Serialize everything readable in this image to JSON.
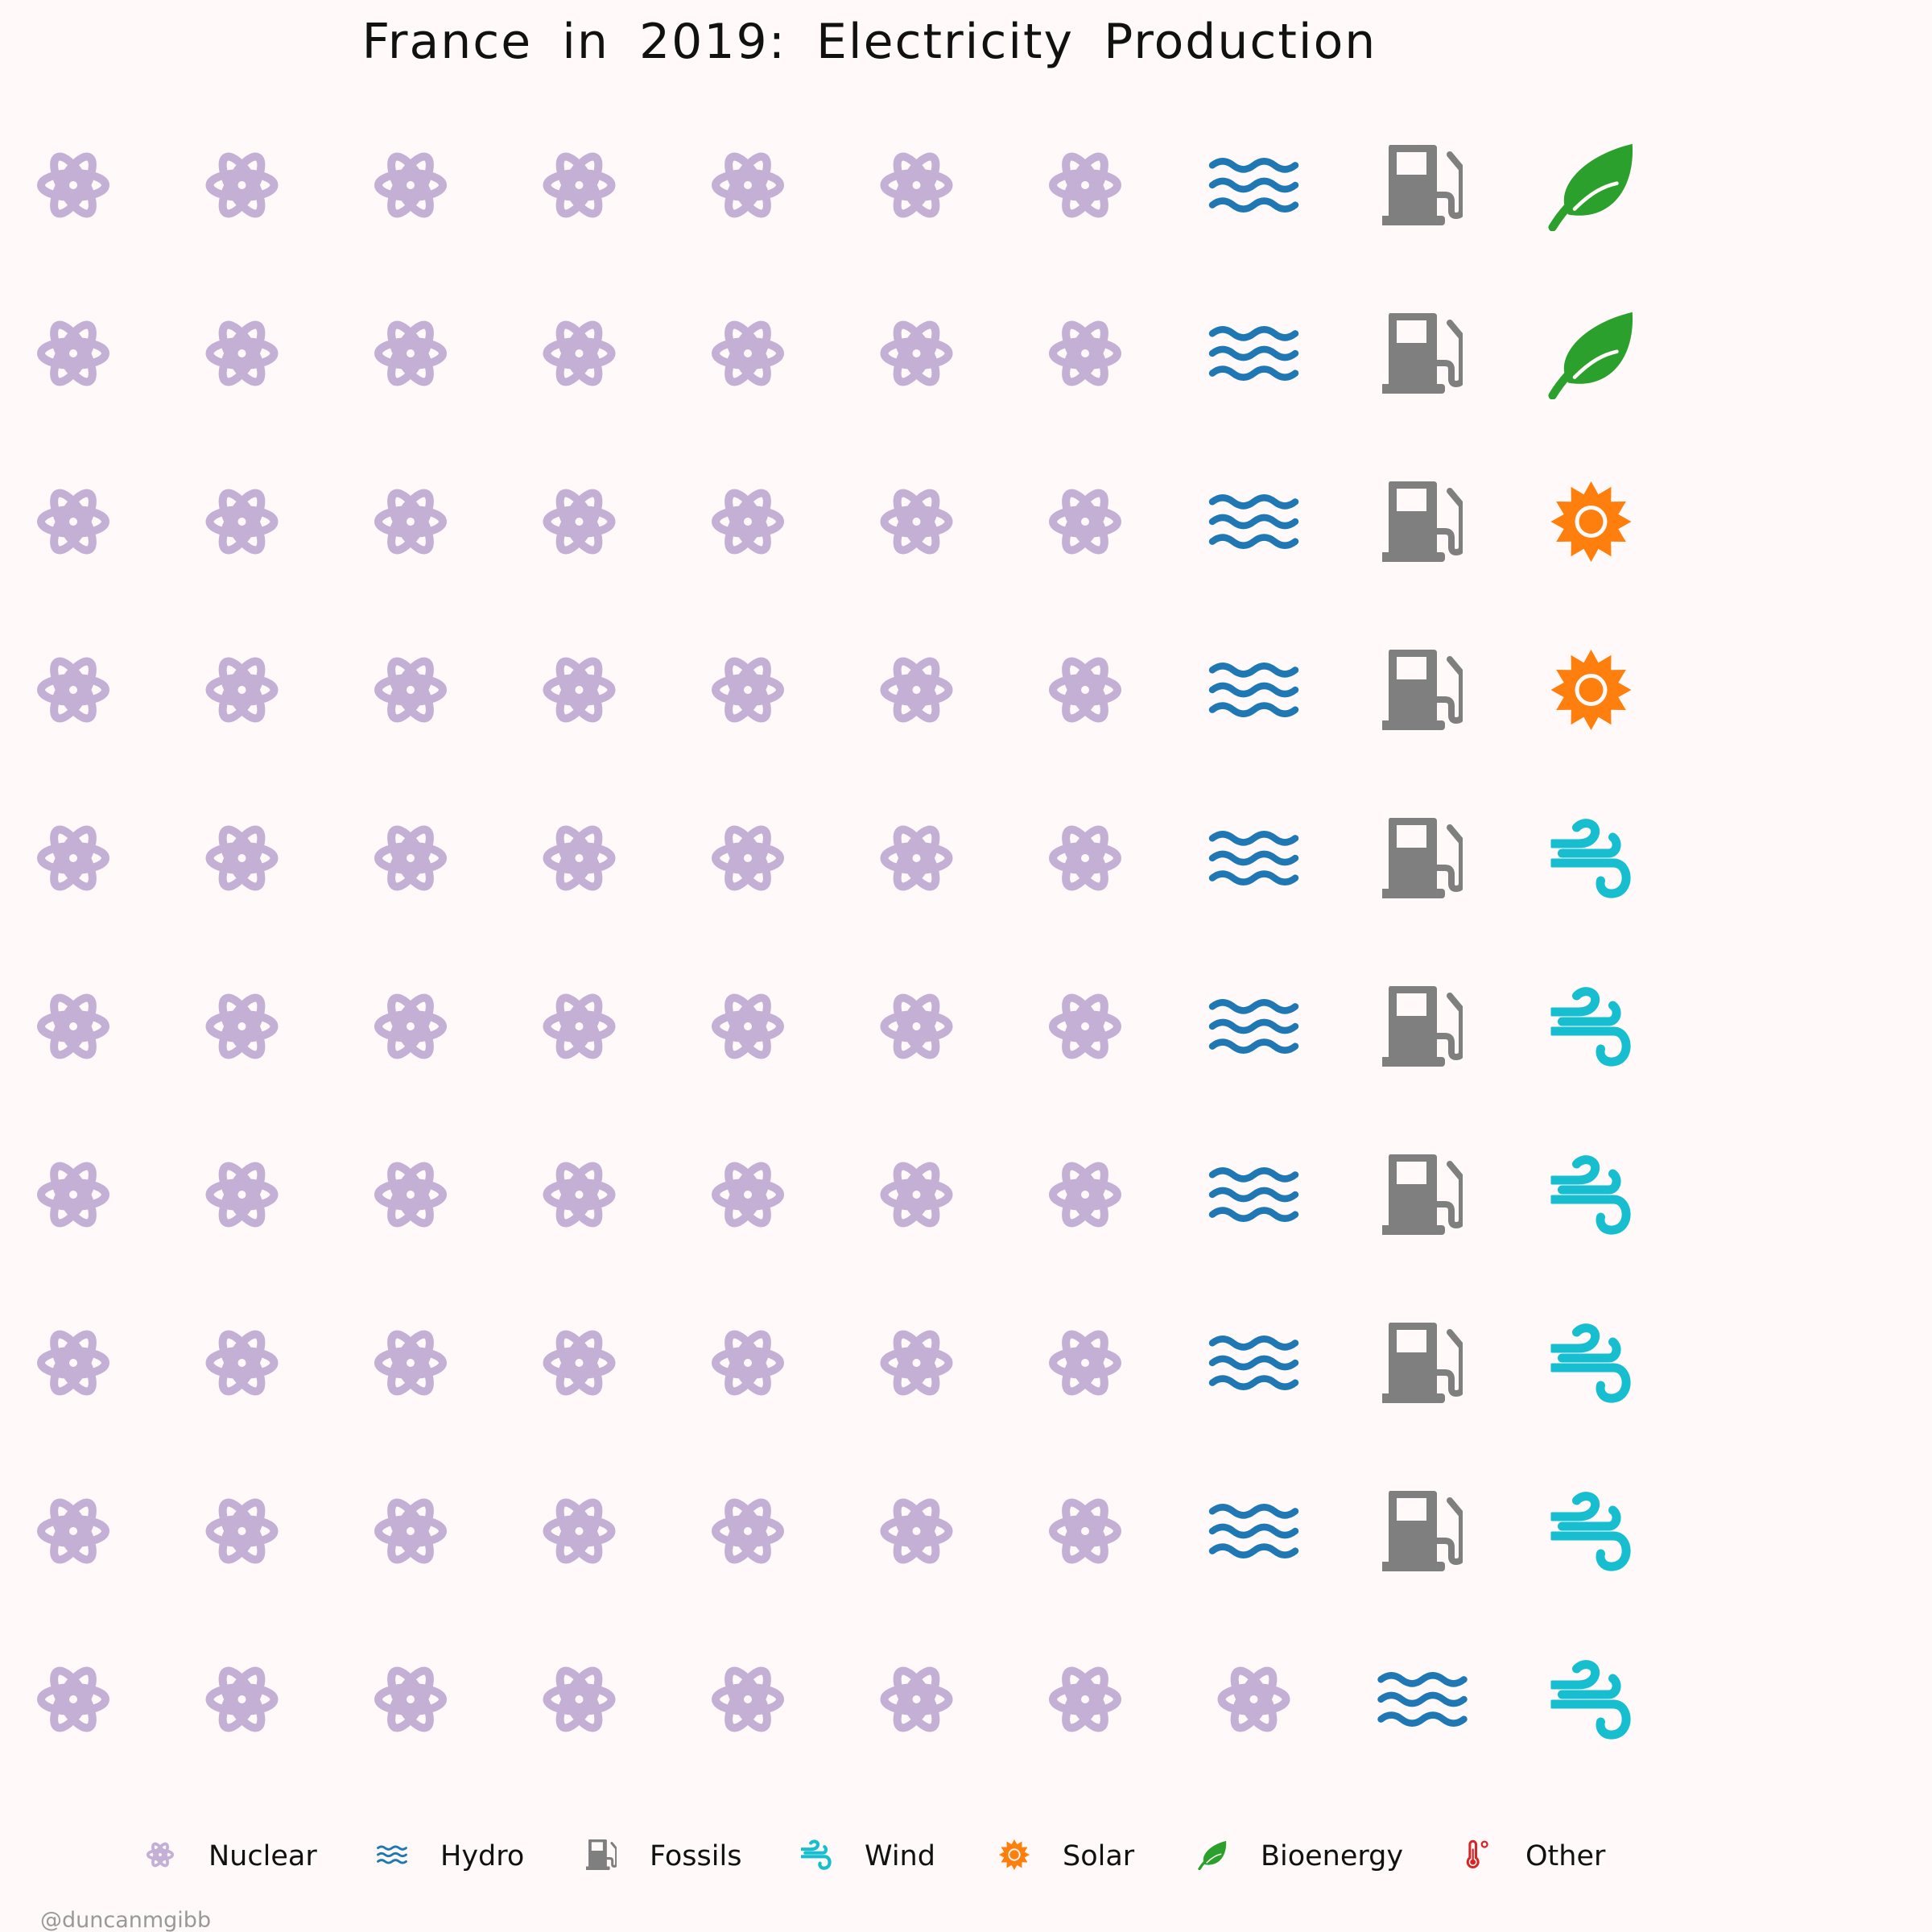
{
  "chart_data": {
    "type": "waffle",
    "title": "France in 2019: Electricity Production",
    "grid": {
      "rows": 10,
      "columns": 10
    },
    "unit": "1 icon = 1% of electricity production",
    "fill_order": "column-major, left to right, bottom to top",
    "categories": [
      "Nuclear",
      "Hydro",
      "Fossils",
      "Wind",
      "Solar",
      "Bioenergy",
      "Other"
    ],
    "series": [
      {
        "name": "Nuclear",
        "value": 71,
        "icon": "atom-icon",
        "color": "#c5b0d5"
      },
      {
        "name": "Hydro",
        "value": 10,
        "icon": "water-waves-icon",
        "color": "#1f77b4"
      },
      {
        "name": "Fossils",
        "value": 9,
        "icon": "gas-pump-icon",
        "color": "#7f7f7f"
      },
      {
        "name": "Wind",
        "value": 6,
        "icon": "wind-icon",
        "color": "#17becf"
      },
      {
        "name": "Solar",
        "value": 2,
        "icon": "sun-icon",
        "color": "#ff7f0e"
      },
      {
        "name": "Bioenergy",
        "value": 2,
        "icon": "leaf-icon",
        "color": "#2ca02c"
      },
      {
        "name": "Other",
        "value": 0,
        "icon": "thermometer-icon",
        "color": "#d62728"
      }
    ],
    "legend": {
      "placement": "bottom",
      "orientation": "horizontal"
    }
  },
  "credit": "@duncanmgibb",
  "background_color": "#fffaf9"
}
